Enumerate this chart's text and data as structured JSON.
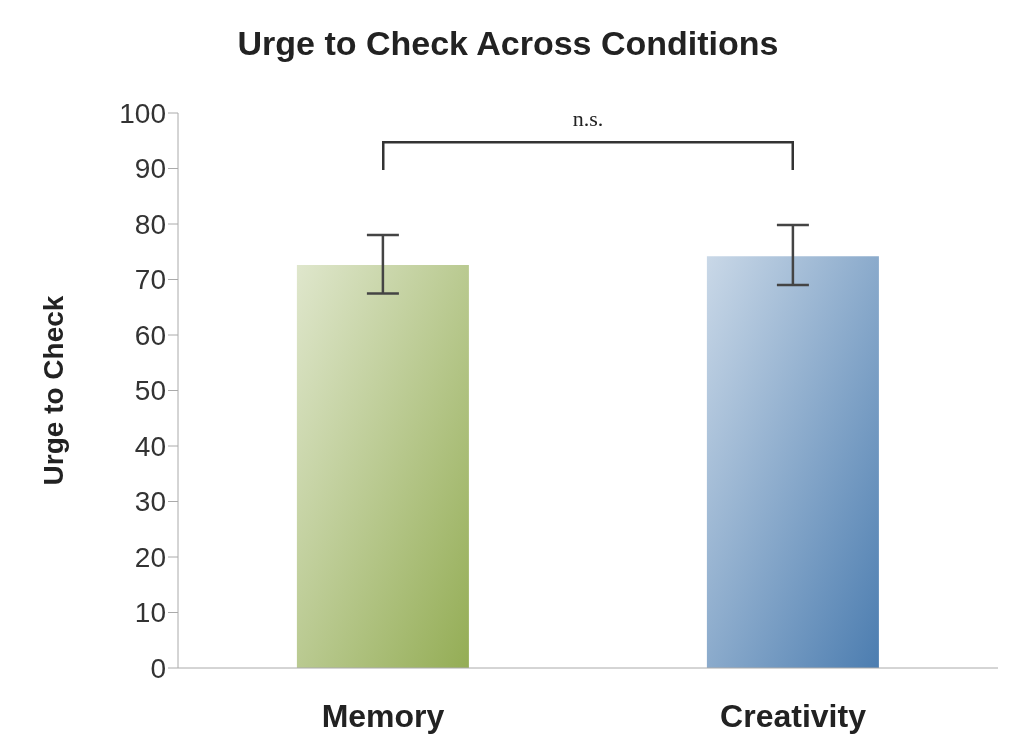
{
  "chart_data": {
    "type": "bar",
    "title": "Urge to Check Across Conditions",
    "ylabel": "Urge to Check",
    "categories": [
      "Memory",
      "Creativity"
    ],
    "values": [
      72.6,
      74.2
    ],
    "colors": [
      "#94ad55",
      "#4c7db0"
    ],
    "errors": [
      [
        67.5,
        78
      ],
      [
        69,
        79.8
      ]
    ],
    "ylim": [
      0,
      100
    ],
    "yticks": [
      0,
      10,
      20,
      30,
      40,
      50,
      60,
      70,
      80,
      90,
      100
    ],
    "annotations": [
      "n.s."
    ]
  }
}
